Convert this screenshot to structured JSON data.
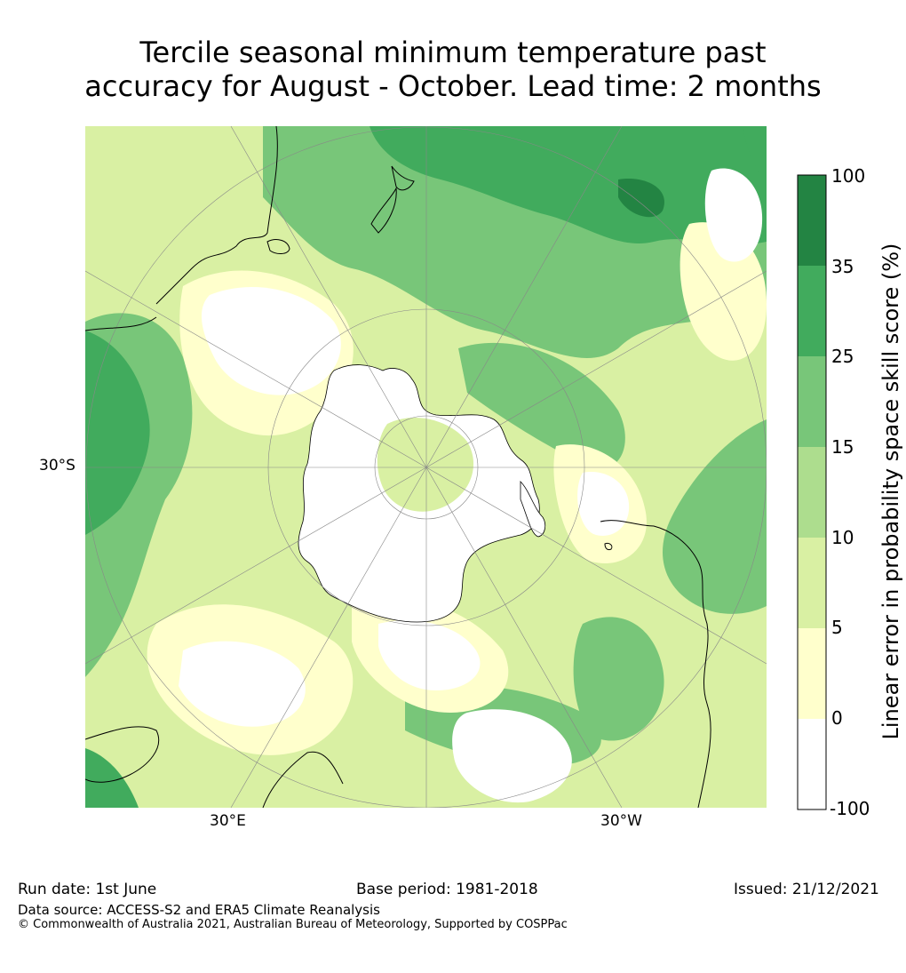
{
  "title": {
    "line1": "Tercile seasonal minimum temperature past",
    "line2": "accuracy for August - October. Lead time: 2 months"
  },
  "map": {
    "projection": "south-polar stereographic",
    "lat_labels": [
      "30°S"
    ],
    "lon_labels": [
      "30°E",
      "30°W"
    ],
    "colors": {
      "white": "#ffffff",
      "c0_5": "#ffffcc",
      "c5_10": "#d9f0a3",
      "c10_15": "#addd8e",
      "c15_25": "#78c679",
      "c25_35": "#41ab5d",
      "c35_100": "#238443",
      "coast": "#000000",
      "grid": "#888888"
    }
  },
  "colorbar": {
    "label": "Linear error in probability space skill score (%)",
    "ticks": [
      "100",
      "35",
      "25",
      "15",
      "10",
      "5",
      "0",
      "-100"
    ],
    "bins": [
      {
        "range": "35-100",
        "color": "#238443"
      },
      {
        "range": "25-35",
        "color": "#41ab5d"
      },
      {
        "range": "15-25",
        "color": "#78c679"
      },
      {
        "range": "10-15",
        "color": "#addd8e"
      },
      {
        "range": "5-10",
        "color": "#d9f0a3"
      },
      {
        "range": "0-5",
        "color": "#ffffcc"
      },
      {
        "range": "-100-0",
        "color": "#ffffff"
      }
    ]
  },
  "footer": {
    "run_date": "Run date: 1st June",
    "base_period": "Base period: 1981-2018",
    "issued": "Issued: 21/12/2021",
    "data_source": "Data source: ACCESS-S2 and ERA5 Climate Reanalysis",
    "copyright": "© Commonwealth of Australia 2021, Australian Bureau of Meteorology, Supported by COSPPac"
  }
}
